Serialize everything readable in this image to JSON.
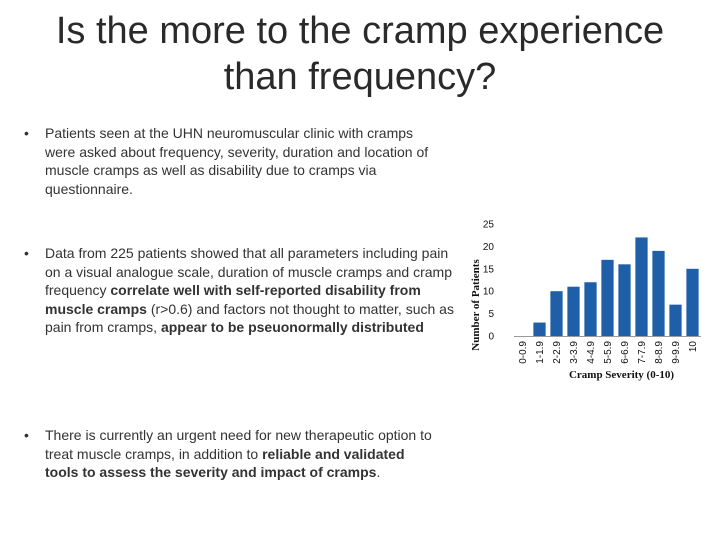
{
  "slide": {
    "title_line1": "Is the more to the cramp experience",
    "title_line2": "than frequency?",
    "bullet_symbol": "•"
  },
  "bullets": {
    "b1": "Patients seen at the UHN neuromuscular clinic with cramps were asked about frequency, severity, duration and location of muscle cramps as well as disability due to cramps via questionnaire.",
    "b2_part1": "Data from 225 patients showed that all parameters including pain on a visual analogue scale, duration of muscle cramps and cramp frequency ",
    "b2_bold1": "correlate well with self-reported disability from muscle cramps",
    "b2_part2": " (r>0.6) and factors not thought to matter, such as pain from cramps, ",
    "b2_bold2": "appear to be pseuonormally distributed",
    "b3_part1": "There is currently an urgent need for new therapeutic option to treat muscle cramps, in addition to ",
    "b3_bold": "reliable and validated tools to assess the severity and impact of cramps",
    "b3_end": "."
  },
  "chart_data": {
    "type": "bar",
    "title": "",
    "xlabel": "Cramp Severity (0-10)",
    "ylabel": "Number of Patients",
    "categories": [
      "0-0.9",
      "1-1.9",
      "2-2.9",
      "3-3.9",
      "4-4.9",
      "5-5.9",
      "6-6.9",
      "7-7.9",
      "8-8.9",
      "9-9.9",
      "10"
    ],
    "values": [
      0,
      3,
      10,
      11,
      12,
      17,
      16,
      22,
      19,
      7,
      15
    ],
    "ylim": [
      0,
      25
    ],
    "yticks": [
      0,
      5,
      10,
      15,
      20,
      25
    ],
    "grid": false,
    "bar_color": "#1f5fa8"
  }
}
